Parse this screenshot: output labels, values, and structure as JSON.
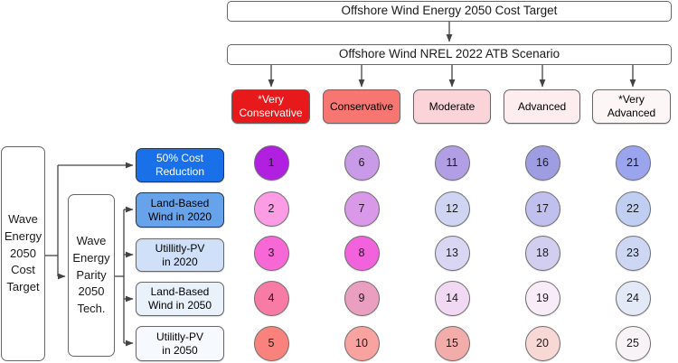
{
  "header": {
    "top_box": "Offshore Wind Energy 2050 Cost Target",
    "scenario_box": "Offshore Wind NREL 2022 ATB Scenario"
  },
  "scenario_columns": [
    {
      "label": "*Very\nConservative",
      "bg": "#e8191a",
      "text": "#ffffff"
    },
    {
      "label": "Conservative",
      "bg": "#f87671",
      "text": "#000000"
    },
    {
      "label": "Moderate",
      "bg": "#fbd4da",
      "text": "#000000"
    },
    {
      "label": "Advanced",
      "bg": "#fdedee",
      "text": "#000000"
    },
    {
      "label": "*Very\nAdvanced",
      "bg": "#fdf6f7",
      "text": "#000000"
    }
  ],
  "left_flow": {
    "root_box": "Wave\nEnergy\n2050\nCost\nTarget",
    "parity_box": "Wave\nEnergy\nParity\n2050\nTech."
  },
  "benchmark_rows": [
    {
      "label": "50% Cost\nReduction",
      "bg": "#1a70e8",
      "text": "#ffffff"
    },
    {
      "label": "Land-Based\nWind in 2020",
      "bg": "#66a3ea",
      "text": "#000000"
    },
    {
      "label": "Utillitly-PV\nin 2020",
      "bg": "#cfe0f8",
      "text": "#000000"
    },
    {
      "label": "Land-Based\nWind in 2050",
      "bg": "#e9f1fb",
      "text": "#000000"
    },
    {
      "label": "Utilitly-PV\nin 2050",
      "bg": "#f6f9fd",
      "text": "#000000"
    }
  ],
  "matrix": {
    "cells": [
      {
        "num": "1",
        "col": 0,
        "row": 0,
        "bg": "#b11fe0"
      },
      {
        "num": "2",
        "col": 0,
        "row": 1,
        "bg": "#fb9ce5"
      },
      {
        "num": "3",
        "col": 0,
        "row": 2,
        "bg": "#f768d6"
      },
      {
        "num": "4",
        "col": 0,
        "row": 3,
        "bg": "#f87ba6"
      },
      {
        "num": "5",
        "col": 0,
        "row": 4,
        "bg": "#f9837c"
      },
      {
        "num": "6",
        "col": 1,
        "row": 0,
        "bg": "#c99ae8"
      },
      {
        "num": "7",
        "col": 1,
        "row": 1,
        "bg": "#da98e8"
      },
      {
        "num": "8",
        "col": 1,
        "row": 2,
        "bg": "#f162dc"
      },
      {
        "num": "9",
        "col": 1,
        "row": 3,
        "bg": "#eb9fc0"
      },
      {
        "num": "10",
        "col": 1,
        "row": 4,
        "bg": "#f9a3a0"
      },
      {
        "num": "11",
        "col": 2,
        "row": 0,
        "bg": "#b29ee5"
      },
      {
        "num": "12",
        "col": 2,
        "row": 1,
        "bg": "#ced4f1"
      },
      {
        "num": "13",
        "col": 2,
        "row": 2,
        "bg": "#d9d6f4"
      },
      {
        "num": "14",
        "col": 2,
        "row": 3,
        "bg": "#f2d9f3"
      },
      {
        "num": "15",
        "col": 2,
        "row": 4,
        "bg": "#f2acaa"
      },
      {
        "num": "16",
        "col": 3,
        "row": 0,
        "bg": "#9f9de2"
      },
      {
        "num": "17",
        "col": 3,
        "row": 1,
        "bg": "#c0bfee"
      },
      {
        "num": "18",
        "col": 3,
        "row": 2,
        "bg": "#d2cef0"
      },
      {
        "num": "19",
        "col": 3,
        "row": 3,
        "bg": "#f8ecf8"
      },
      {
        "num": "20",
        "col": 3,
        "row": 4,
        "bg": "#f8d8d4"
      },
      {
        "num": "21",
        "col": 4,
        "row": 0,
        "bg": "#9aa5ee"
      },
      {
        "num": "22",
        "col": 4,
        "row": 1,
        "bg": "#c0cff1"
      },
      {
        "num": "23",
        "col": 4,
        "row": 2,
        "bg": "#cdd6f2"
      },
      {
        "num": "24",
        "col": 4,
        "row": 3,
        "bg": "#e3e9f6"
      },
      {
        "num": "25",
        "col": 4,
        "row": 4,
        "bg": "#f8f3f7"
      }
    ]
  },
  "colors": {
    "connector": "#434343",
    "box_border": "#666666"
  }
}
